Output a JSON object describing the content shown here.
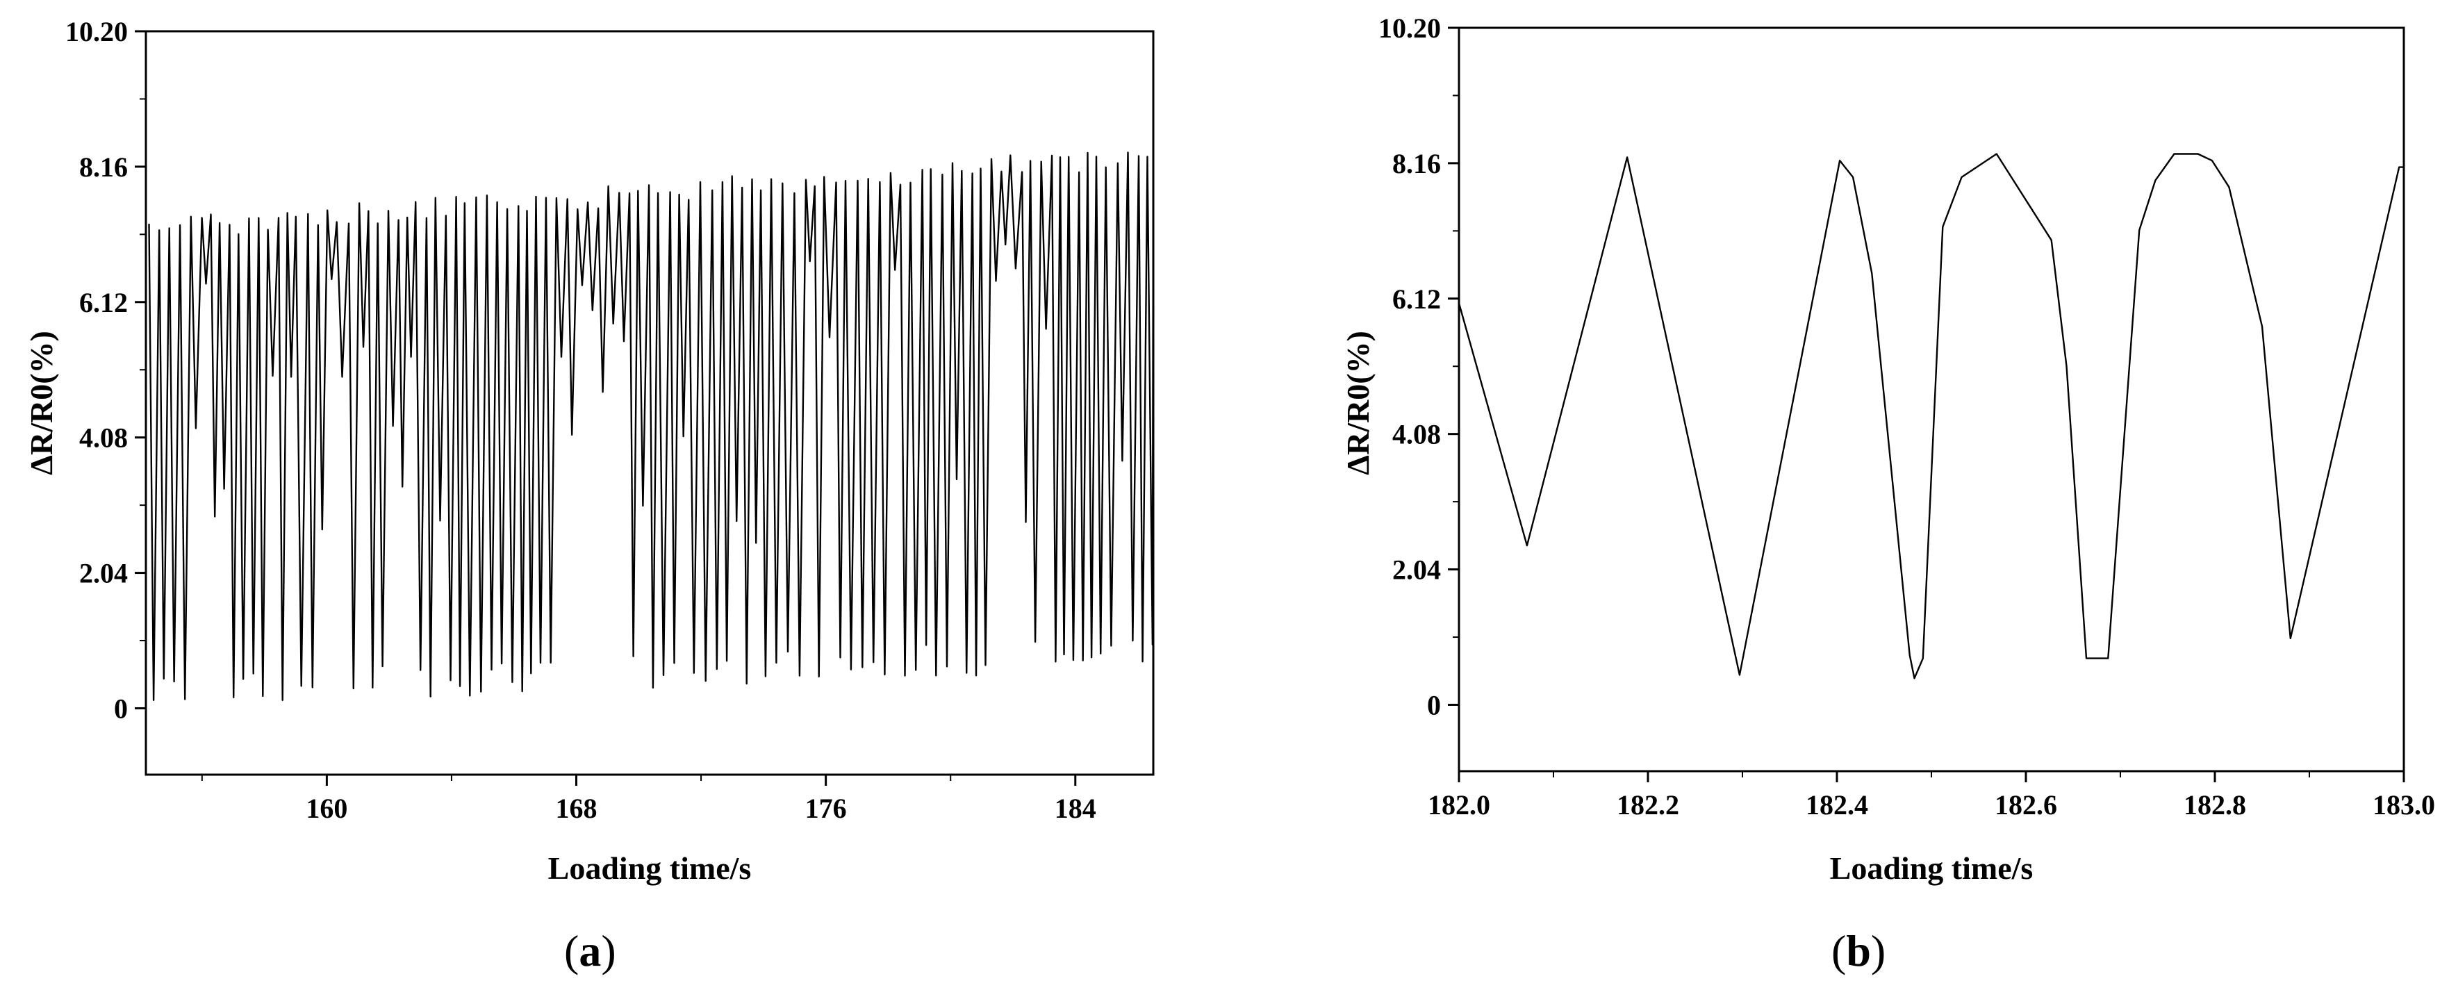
{
  "chart_data": [
    {
      "panel": "a",
      "caption": {
        "open": "(",
        "letter": "a",
        "close": ")"
      },
      "type": "line",
      "xlabel": "Loading time/s",
      "ylabel": "ΔR/R0(%)",
      "xlim": [
        154.2,
        186.5
      ],
      "ylim": [
        -1.0,
        10.2
      ],
      "x_ticks": [
        160,
        168,
        176,
        184
      ],
      "x_tick_labels": [
        "160",
        "168",
        "176",
        "184"
      ],
      "y_ticks": [
        0,
        2.04,
        4.08,
        6.12,
        8.16,
        10.2
      ],
      "y_tick_labels": [
        "0",
        "2.04",
        "4.08",
        "6.12",
        "8.16",
        "10.20"
      ],
      "grid": false,
      "signal": {
        "description_type": "periodic oscillation",
        "x_start": 154.3,
        "x_end": 186.5,
        "period": 0.33,
        "min_start": 0.0,
        "min_end": 0.6,
        "max_start": 7.4,
        "max_end": 8.5
      }
    },
    {
      "panel": "b",
      "caption": {
        "open": "(",
        "letter": "b",
        "close": ")"
      },
      "type": "line",
      "xlabel": "Loading time/s",
      "ylabel": "ΔR/R0(%)",
      "xlim": [
        182.0,
        183.0
      ],
      "ylim": [
        -1.0,
        10.2
      ],
      "x_ticks": [
        182.0,
        182.2,
        182.4,
        182.6,
        182.8,
        183.0
      ],
      "x_tick_labels": [
        "182.0",
        "182.2",
        "182.4",
        "182.6",
        "182.8",
        "183.0"
      ],
      "y_ticks": [
        0,
        2.04,
        4.08,
        6.12,
        8.16,
        10.2
      ],
      "y_tick_labels": [
        "0",
        "2.04",
        "4.08",
        "6.12",
        "8.16",
        "10.20"
      ],
      "grid": false,
      "x": [
        182.0,
        182.072,
        182.178,
        182.297,
        182.403,
        182.417,
        182.437,
        182.477,
        182.482,
        182.491,
        182.512,
        182.532,
        182.569,
        182.627,
        182.643,
        182.664,
        182.677,
        182.687,
        182.72,
        182.737,
        182.757,
        182.782,
        182.797,
        182.815,
        182.85,
        182.88,
        182.995,
        183.0
      ],
      "y": [
        6.05,
        2.4,
        8.25,
        0.45,
        8.2,
        7.95,
        6.5,
        0.75,
        0.4,
        0.7,
        7.2,
        7.95,
        8.3,
        7.0,
        5.1,
        0.7,
        0.7,
        0.7,
        7.15,
        7.9,
        8.3,
        8.3,
        8.2,
        7.8,
        5.7,
        1.0,
        8.1,
        8.1
      ]
    }
  ]
}
